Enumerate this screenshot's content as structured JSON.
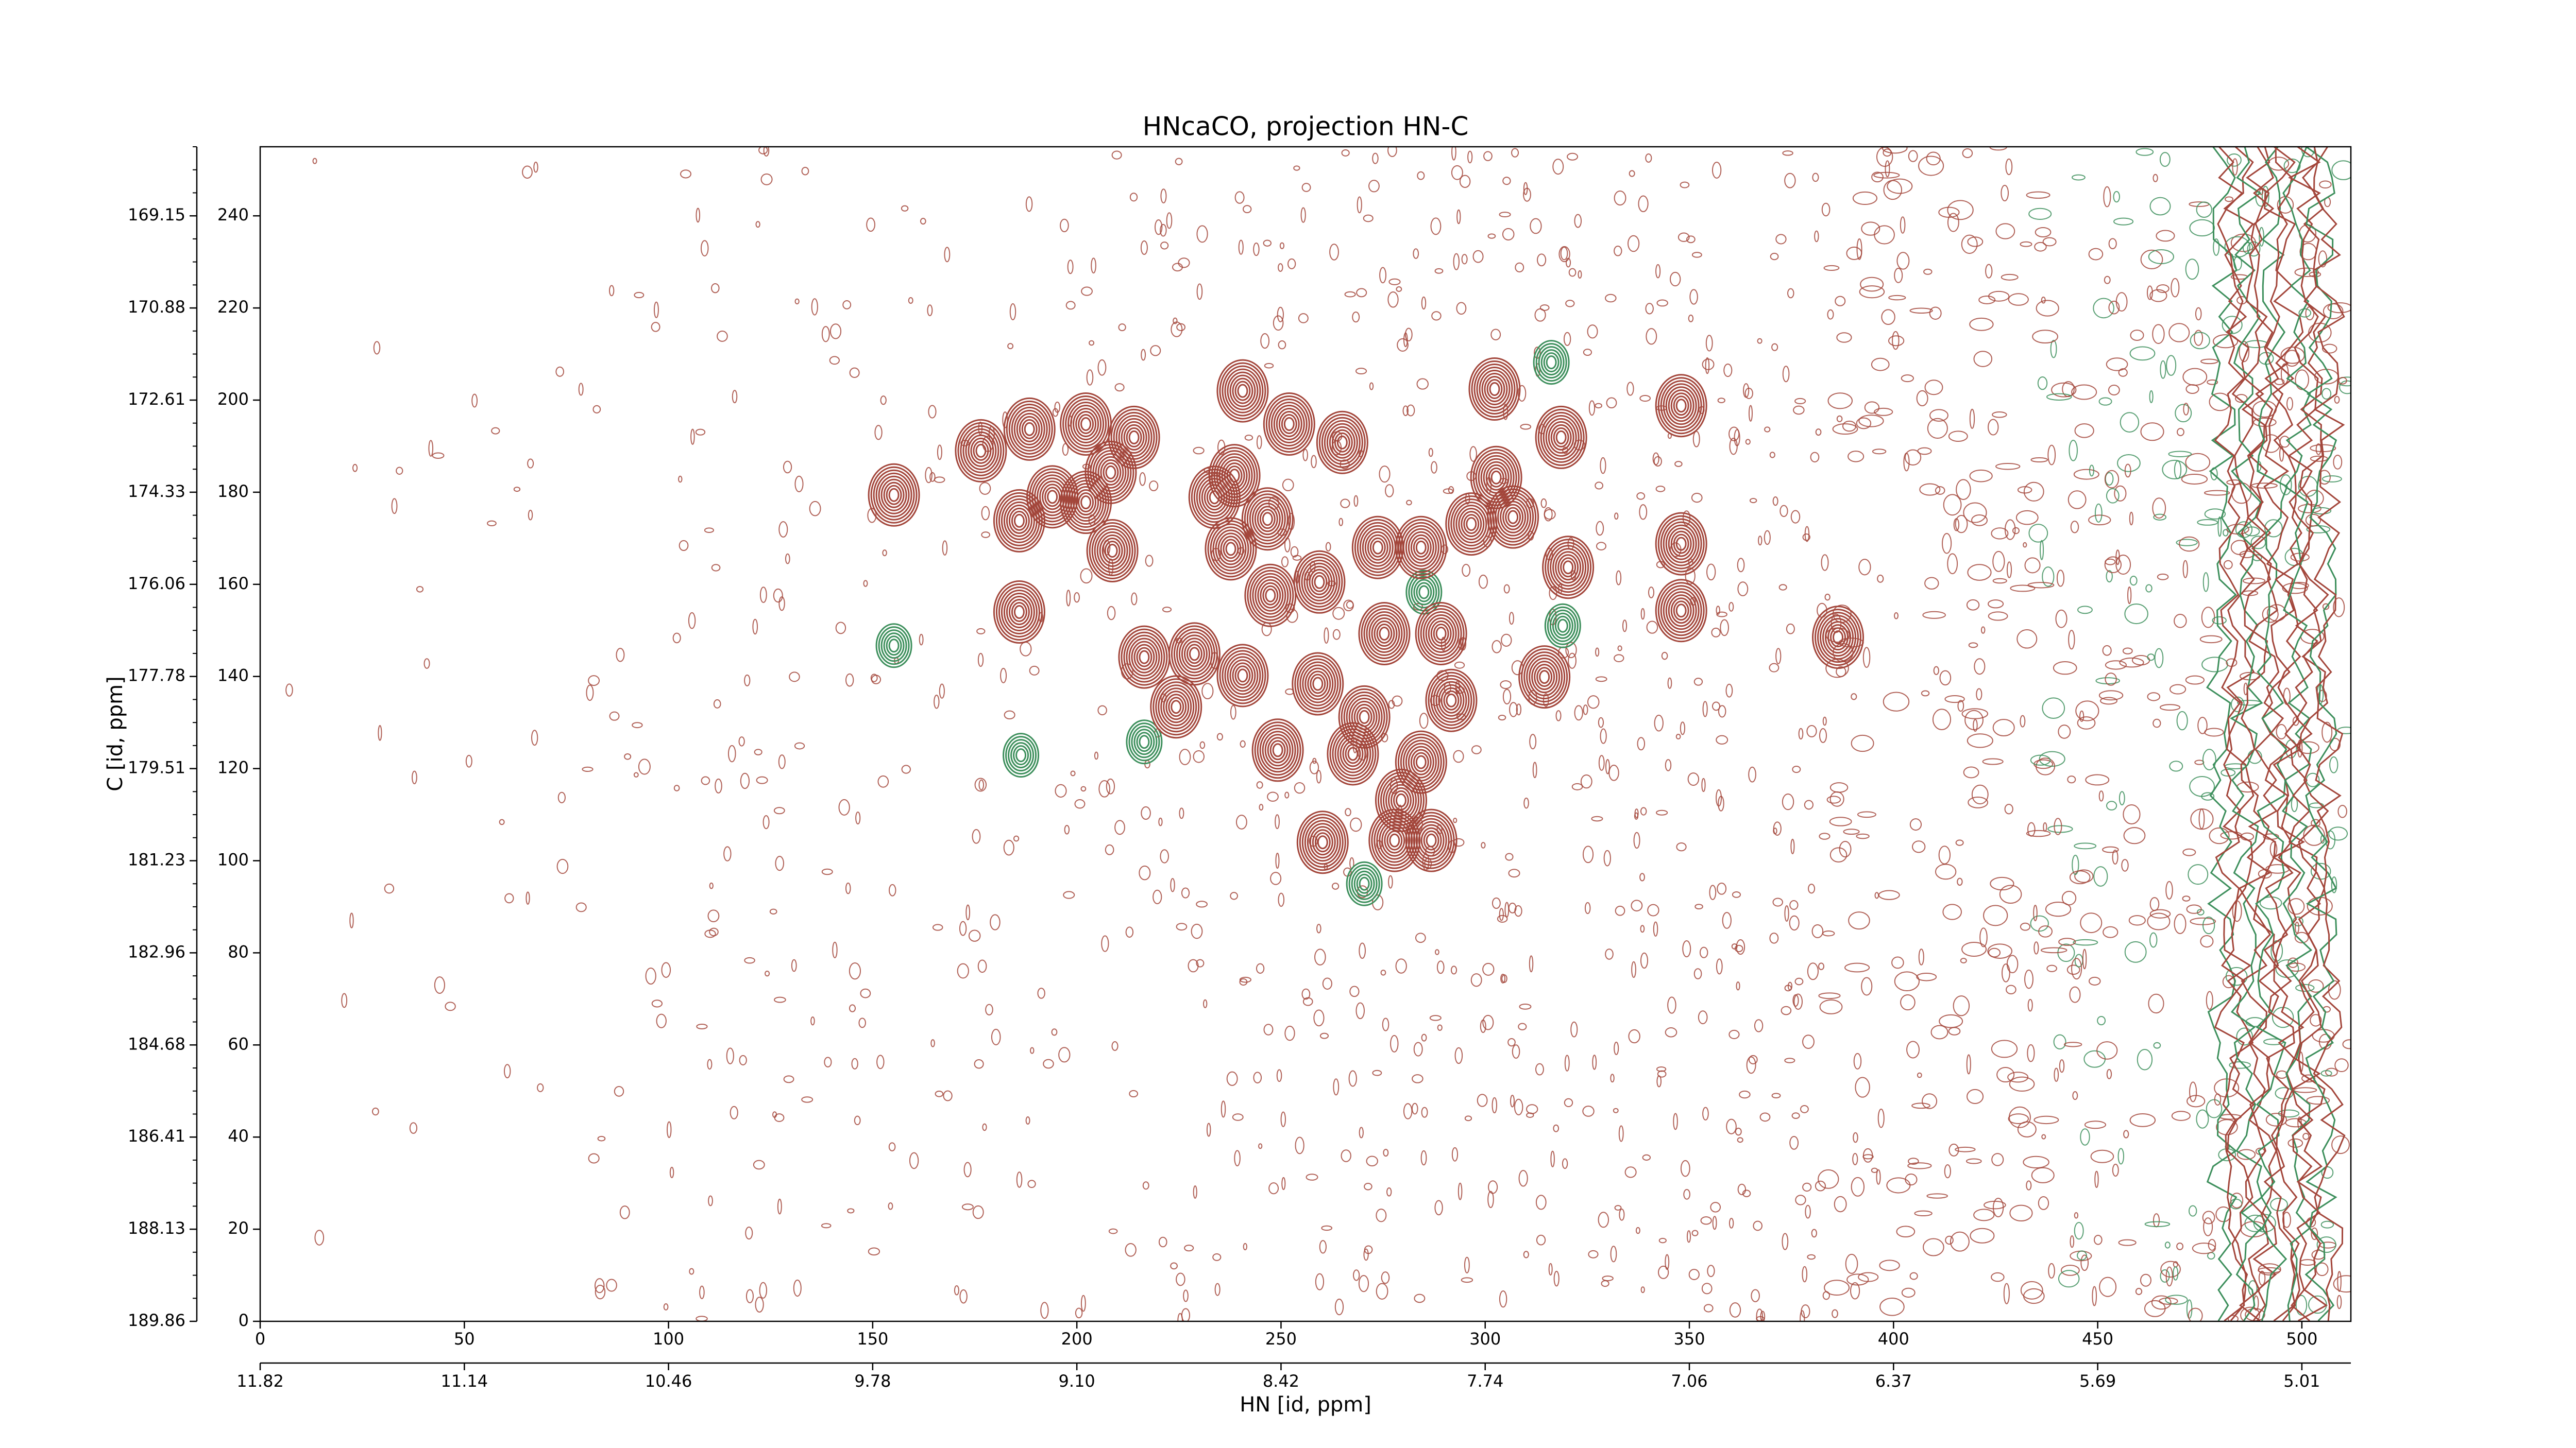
{
  "chart_data": {
    "type": "contour",
    "title": "HNcaCO, projection HN-C",
    "xlabel": "HN [id, ppm]",
    "ylabel": "C [id, ppm]",
    "xlim": [
      0,
      512
    ],
    "ylim": [
      0,
      255
    ],
    "xticks": [
      0,
      50,
      100,
      150,
      200,
      250,
      300,
      350,
      400,
      450,
      500
    ],
    "yticks": [
      0,
      20,
      40,
      60,
      80,
      100,
      120,
      140,
      160,
      180,
      200,
      220,
      240
    ],
    "x2ticks": [
      {
        "value": 0,
        "label": "11.82"
      },
      {
        "value": 50,
        "label": "11.14"
      },
      {
        "value": 100,
        "label": "10.46"
      },
      {
        "value": 150,
        "label": "9.78"
      },
      {
        "value": 200,
        "label": "9.10"
      },
      {
        "value": 250,
        "label": "8.42"
      },
      {
        "value": 300,
        "label": "7.74"
      },
      {
        "value": 350,
        "label": "7.06"
      },
      {
        "value": 400,
        "label": "6.37"
      },
      {
        "value": 450,
        "label": "5.69"
      },
      {
        "value": 500,
        "label": "5.01"
      }
    ],
    "y2ticks": [
      {
        "value": 0,
        "label": "189.86"
      },
      {
        "value": 20,
        "label": "188.13"
      },
      {
        "value": 40,
        "label": "186.41"
      },
      {
        "value": 60,
        "label": "184.68"
      },
      {
        "value": 80,
        "label": "182.96"
      },
      {
        "value": 100,
        "label": "181.23"
      },
      {
        "value": 120,
        "label": "179.51"
      },
      {
        "value": 140,
        "label": "177.78"
      },
      {
        "value": 160,
        "label": "176.06"
      },
      {
        "value": 180,
        "label": "174.33"
      },
      {
        "value": 200,
        "label": "172.61"
      },
      {
        "value": 220,
        "label": "170.88"
      },
      {
        "value": 240,
        "label": "169.15"
      }
    ],
    "positive_color": "#a3463b",
    "negative_color": "#3d8f5c",
    "positive_peaks": {
      "x": [
        155.2,
        176.5,
        185.9,
        185.9,
        194,
        202.2,
        202.2,
        208.7,
        216.5,
        208.3,
        224.3,
        228.8,
        240.6,
        240.6,
        252,
        249.2,
        260.2,
        265,
        267.6,
        270.4,
        273.7,
        284.3,
        277.8,
        286.8,
        284.3,
        279.4,
        291.7,
        302.3,
        302.7,
        306.8,
        314.5,
        318.6,
        320.3,
        348,
        348,
        348,
        386.4,
        246.7,
        259.4,
        247.4,
        233.7,
        237.7,
        296.6,
        289.2,
        275.3,
        259,
        238.6,
        188.4,
        214
      ],
      "y": [
        179.4,
        189,
        173.8,
        154,
        179,
        194.8,
        177.8,
        167.3,
        144.2,
        184.3,
        133.4,
        144.9,
        202,
        140.2,
        194.8,
        124,
        104,
        190.8,
        123.2,
        131.2,
        168,
        168,
        104.4,
        104.4,
        121.4,
        113.1,
        134.8,
        202.4,
        183.2,
        174.6,
        139.9,
        191.9,
        163.7,
        168.8,
        154.3,
        198.8,
        148.5,
        174.2,
        160.5,
        157.6,
        178.9,
        167.7,
        173.1,
        149.3,
        149.3,
        138.4,
        183.6,
        193.7,
        191.9
      ]
    },
    "negative_peaks": {
      "x": [
        155.2,
        316.2,
        270.4,
        216.5,
        319,
        285,
        186.3
      ],
      "y": [
        146.7,
        208.2,
        95,
        125.8,
        151,
        158.3,
        122.9
      ]
    }
  }
}
